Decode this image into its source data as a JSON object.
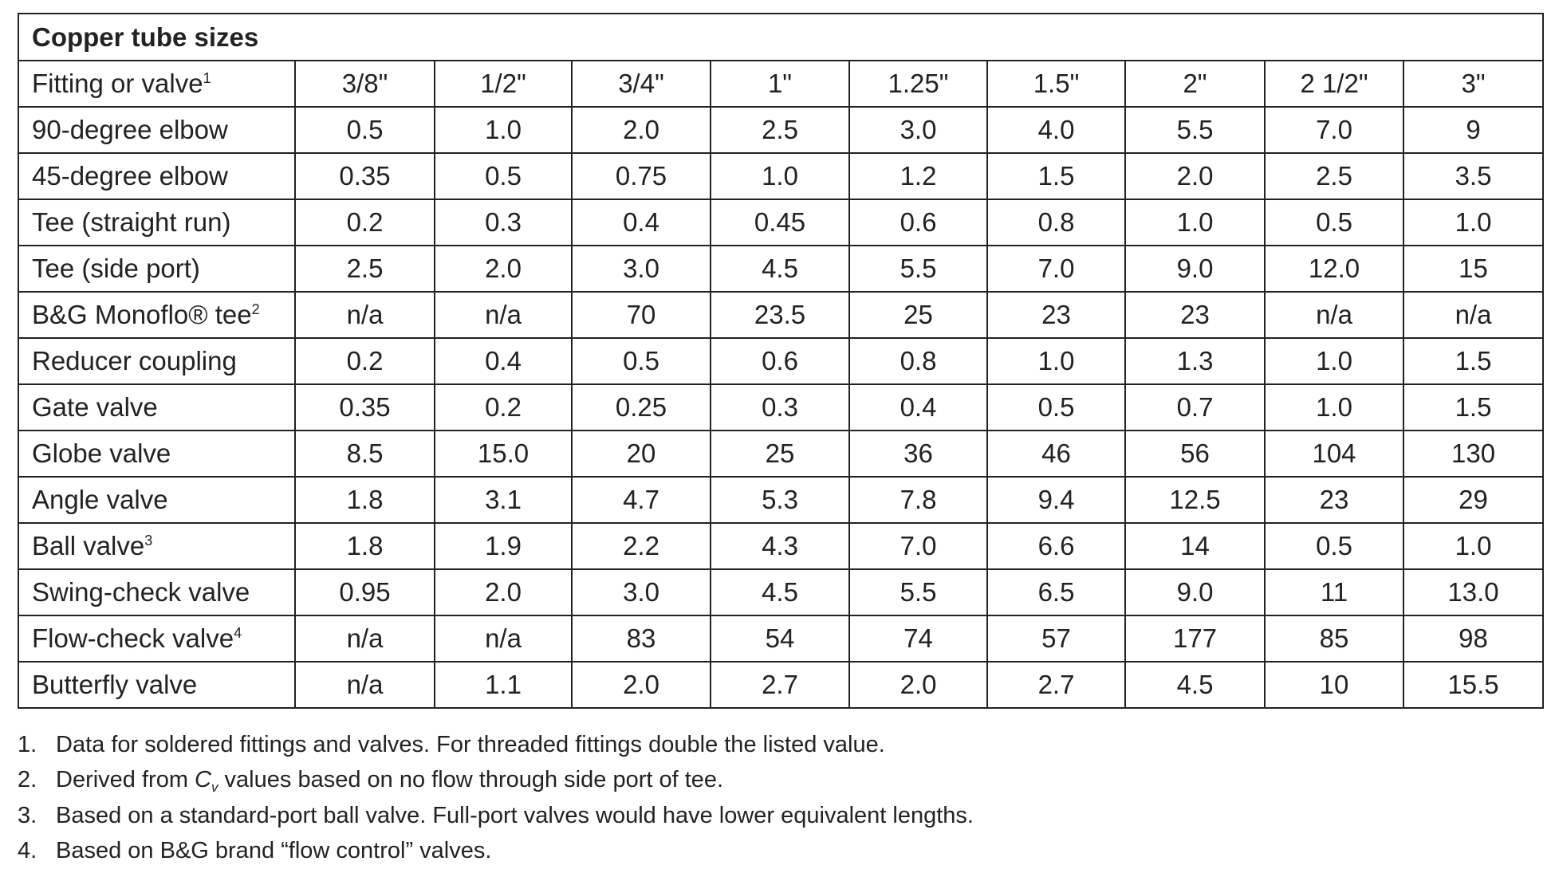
{
  "table": {
    "title": "Copper tube sizes",
    "header": {
      "label": "Fitting or valve",
      "sup": "1",
      "columns": [
        "3/8\"",
        "1/2\"",
        "3/4\"",
        "1\"",
        "1.25\"",
        "1.5\"",
        "2\"",
        "2 1/2\"",
        "3\""
      ]
    },
    "rows": [
      {
        "label": "90-degree elbow",
        "cells": [
          "0.5",
          "1.0",
          "2.0",
          "2.5",
          "3.0",
          "4.0",
          "5.5",
          "7.0",
          "9"
        ]
      },
      {
        "label": "45-degree elbow",
        "cells": [
          "0.35",
          "0.5",
          "0.75",
          "1.0",
          "1.2",
          "1.5",
          "2.0",
          "2.5",
          "3.5"
        ]
      },
      {
        "label": "Tee (straight run)",
        "cells": [
          "0.2",
          "0.3",
          "0.4",
          "0.45",
          "0.6",
          "0.8",
          "1.0",
          "0.5",
          "1.0"
        ]
      },
      {
        "label": "Tee (side port)",
        "cells": [
          "2.5",
          "2.0",
          "3.0",
          "4.5",
          "5.5",
          "7.0",
          "9.0",
          "12.0",
          "15"
        ]
      },
      {
        "label": "B&G Monoflo® tee",
        "sup": "2",
        "cells": [
          "n/a",
          "n/a",
          "70",
          "23.5",
          "25",
          "23",
          "23",
          "n/a",
          "n/a"
        ]
      },
      {
        "label": "Reducer coupling",
        "cells": [
          "0.2",
          "0.4",
          "0.5",
          "0.6",
          "0.8",
          "1.0",
          "1.3",
          "1.0",
          "1.5"
        ]
      },
      {
        "label": "Gate valve",
        "cells": [
          "0.35",
          "0.2",
          "0.25",
          "0.3",
          "0.4",
          "0.5",
          "0.7",
          "1.0",
          "1.5"
        ]
      },
      {
        "label": "Globe valve",
        "cells": [
          "8.5",
          "15.0",
          "20",
          "25",
          "36",
          "46",
          "56",
          "104",
          "130"
        ]
      },
      {
        "label": "Angle valve",
        "cells": [
          "1.8",
          "3.1",
          "4.7",
          "5.3",
          "7.8",
          "9.4",
          "12.5",
          "23",
          "29"
        ]
      },
      {
        "label": "Ball valve",
        "sup": "3",
        "cells": [
          "1.8",
          "1.9",
          "2.2",
          "4.3",
          "7.0",
          "6.6",
          "14",
          "0.5",
          "1.0"
        ]
      },
      {
        "label": "Swing-check valve",
        "cells": [
          "0.95",
          "2.0",
          "3.0",
          "4.5",
          "5.5",
          "6.5",
          "9.0",
          "11",
          "13.0"
        ]
      },
      {
        "label": "Flow-check valve",
        "sup": "4",
        "cells": [
          "n/a",
          "n/a",
          "83",
          "54",
          "74",
          "57",
          "177",
          "85",
          "98"
        ]
      },
      {
        "label": "Butterfly valve",
        "cells": [
          "n/a",
          "1.1",
          "2.0",
          "2.7",
          "2.0",
          "2.7",
          "4.5",
          "10",
          "15.5"
        ]
      }
    ]
  },
  "footnotes": [
    {
      "number": "1.",
      "text": "Data for soldered fittings and valves. For threaded fittings double the listed value."
    },
    {
      "number": "2.",
      "before": "Derived from ",
      "symbol": "C",
      "subscript": "v",
      "after": " values based on no flow through side port of tee."
    },
    {
      "number": "3.",
      "text": "Based on a standard-port ball valve. Full-port valves would have lower equivalent lengths."
    },
    {
      "number": "4.",
      "text": "Based on B&G brand “flow control” valves."
    }
  ]
}
